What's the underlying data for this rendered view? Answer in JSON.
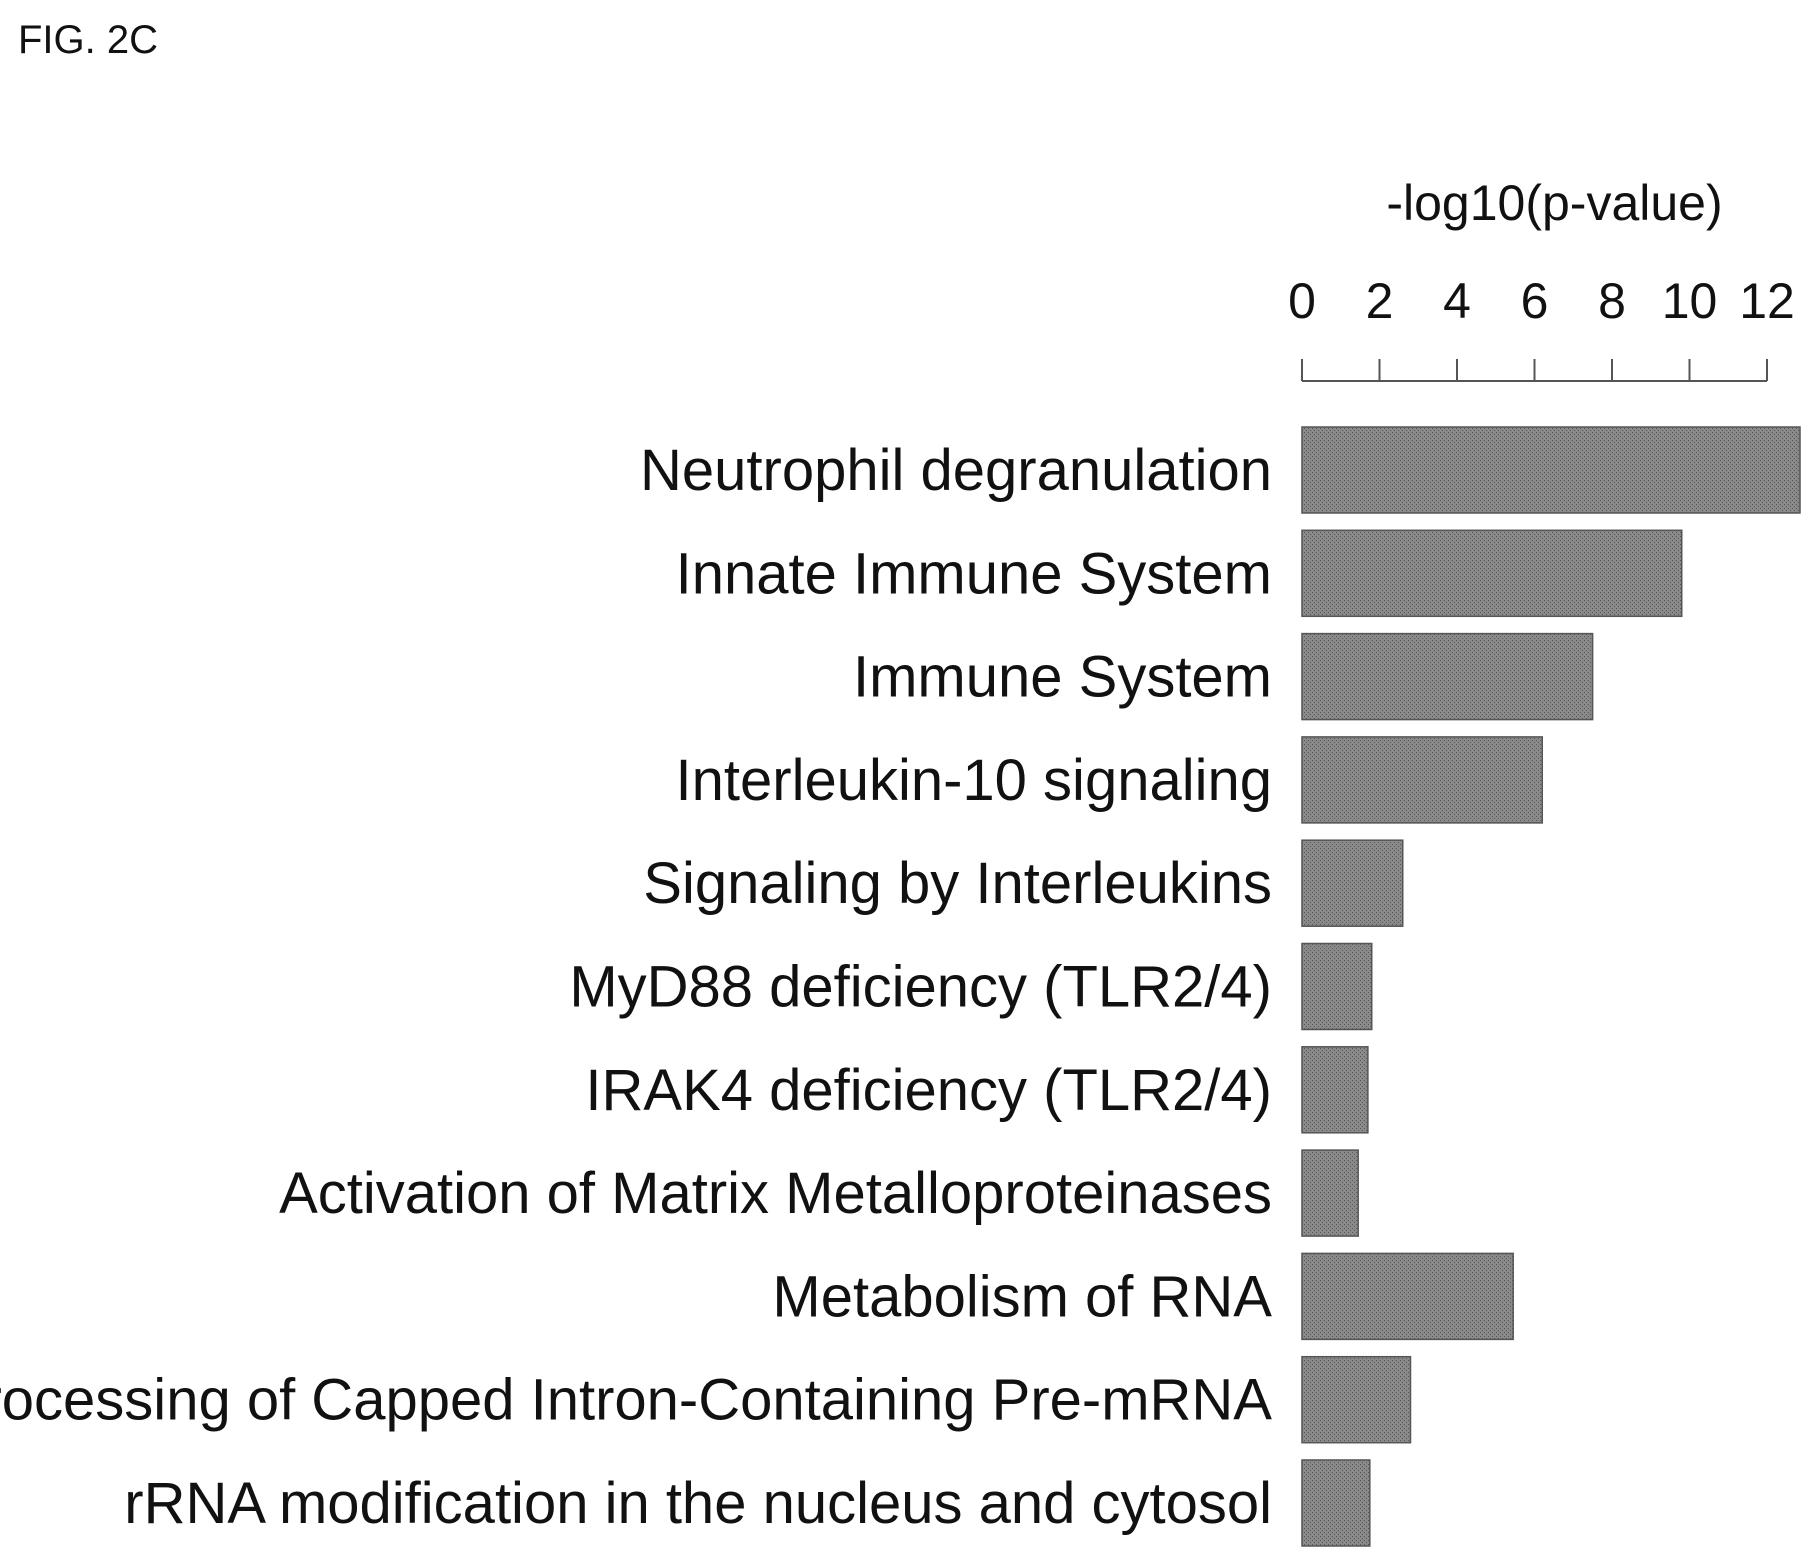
{
  "figure_label": "FIG. 2C",
  "chart_data": {
    "type": "bar",
    "orientation": "horizontal",
    "title": "",
    "xlabel": "-log10(p-value)",
    "ylabel": "",
    "xlim": [
      0,
      12
    ],
    "xticks": [
      0,
      2,
      4,
      6,
      8,
      10,
      12
    ],
    "axis_position": "top",
    "grid": false,
    "bar_color": "#7f7f7f",
    "categories": [
      "Neutrophil degranulation",
      "Innate Immune System",
      "Immune System",
      "Interleukin-10 signaling",
      "Signaling by Interleukins",
      "MyD88 deficiency (TLR2/4)",
      "IRAK4 deficiency (TLR2/4)",
      "Activation of Matrix Metalloproteinases",
      "Metabolism of RNA",
      "Processing of Capped Intron-Containing Pre-mRNA",
      "rRNA modification in the nucleus and cytosol"
    ],
    "values": [
      12.9,
      9.8,
      7.5,
      6.2,
      2.6,
      1.8,
      1.7,
      1.45,
      5.45,
      2.8,
      1.75
    ]
  }
}
